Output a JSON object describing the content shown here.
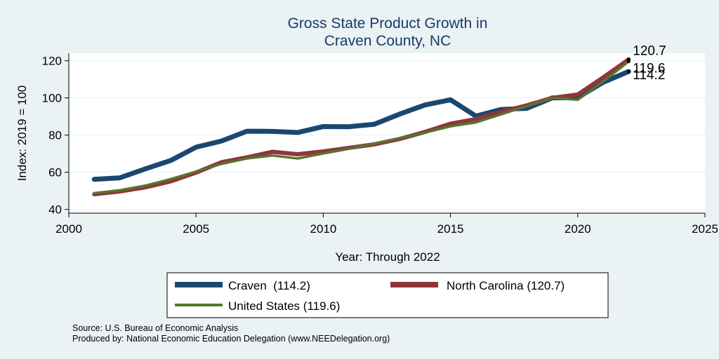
{
  "chart_data": {
    "type": "line",
    "title": [
      "Gross State Product Growth in",
      "Craven County, NC"
    ],
    "xlabel": "Year: Through 2022",
    "ylabel": "Index: 2019 = 100",
    "xlim": [
      2000,
      2025
    ],
    "ylim": [
      38,
      124
    ],
    "xticks": [
      2000,
      2005,
      2010,
      2015,
      2020,
      2025
    ],
    "yticks": [
      40,
      60,
      80,
      100,
      120
    ],
    "grid": "horizontal",
    "x": [
      2001,
      2002,
      2003,
      2004,
      2005,
      2006,
      2007,
      2008,
      2009,
      2010,
      2011,
      2012,
      2013,
      2014,
      2015,
      2016,
      2017,
      2018,
      2019,
      2020,
      2021,
      2022
    ],
    "series": [
      {
        "name": "Craven  (114.2)",
        "color": "#1a476f",
        "end_label": "114.2",
        "values": [
          56.2,
          57.0,
          61.8,
          66.3,
          73.5,
          76.8,
          82.1,
          82.0,
          81.4,
          84.6,
          84.5,
          85.8,
          91.3,
          96.2,
          99.0,
          90.2,
          93.8,
          94.4,
          100.0,
          100.2,
          108.4,
          114.2
        ]
      },
      {
        "name": "North Carolina (120.7)",
        "color": "#90353b",
        "end_label": "120.7",
        "values": [
          48.2,
          49.7,
          51.9,
          55.1,
          59.8,
          65.4,
          68.0,
          71.0,
          69.7,
          71.2,
          73.1,
          75.0,
          77.9,
          81.7,
          86.1,
          88.6,
          92.6,
          96.0,
          100.0,
          101.8,
          111.0,
          120.7
        ]
      },
      {
        "name": "United States (119.6)",
        "color": "#55752f",
        "end_label": "119.6",
        "values": [
          48.8,
          50.3,
          52.8,
          56.3,
          60.4,
          64.5,
          67.4,
          69.0,
          67.4,
          70.1,
          72.6,
          75.4,
          78.3,
          81.3,
          84.7,
          86.8,
          91.2,
          95.6,
          100.0,
          99.0,
          108.8,
          119.6
        ]
      }
    ],
    "legend": "bottom",
    "notes": [
      "Source: U.S. Bureau of Economic Analysis",
      "Produced by: National Economic Education Delegation (www.NEEDelegation.org)"
    ]
  }
}
